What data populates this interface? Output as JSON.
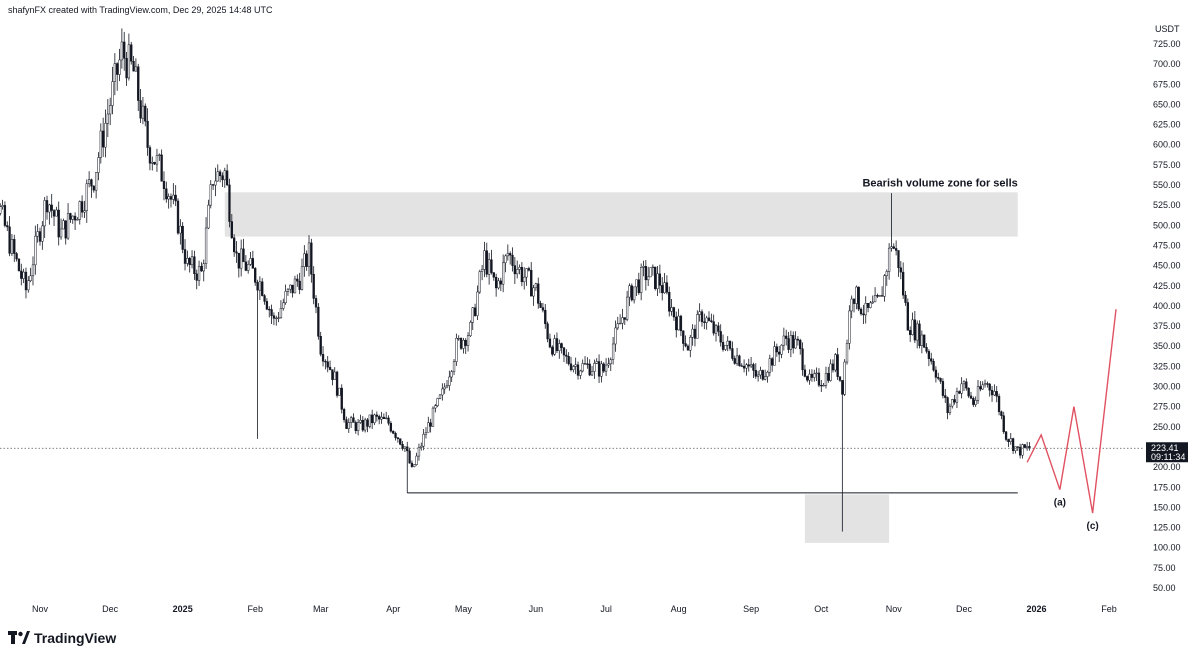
{
  "header": {
    "text": "shafynFX created with TradingView.com, Dec 29, 2025 14:48 UTC"
  },
  "logo": {
    "text": "TradingView"
  },
  "chart_data": {
    "type": "candlestick",
    "price_unit": "USDT",
    "y_ticks": [
      "725.00",
      "700.00",
      "675.00",
      "650.00",
      "625.00",
      "600.00",
      "575.00",
      "550.00",
      "525.00",
      "500.00",
      "475.00",
      "450.00",
      "425.00",
      "400.00",
      "375.00",
      "350.00",
      "325.00",
      "300.00",
      "275.00",
      "250.00",
      "225.00",
      "200.00",
      "175.00",
      "150.00",
      "125.00",
      "100.00",
      "75.00",
      "50.00"
    ],
    "ylim": [
      40,
      745
    ],
    "x_ticks": [
      {
        "label": "Nov",
        "date": "2024-11-01",
        "year": false
      },
      {
        "label": "Dec",
        "date": "2024-12-01",
        "year": false
      },
      {
        "label": "2025",
        "date": "2025-01-01",
        "year": true
      },
      {
        "label": "Feb",
        "date": "2025-02-01",
        "year": false
      },
      {
        "label": "Mar",
        "date": "2025-03-01",
        "year": false
      },
      {
        "label": "Apr",
        "date": "2025-04-01",
        "year": false
      },
      {
        "label": "May",
        "date": "2025-05-01",
        "year": false
      },
      {
        "label": "Jun",
        "date": "2025-06-01",
        "year": false
      },
      {
        "label": "Jul",
        "date": "2025-07-01",
        "year": false
      },
      {
        "label": "Aug",
        "date": "2025-08-01",
        "year": false
      },
      {
        "label": "Sep",
        "date": "2025-09-01",
        "year": false
      },
      {
        "label": "Oct",
        "date": "2025-10-01",
        "year": false
      },
      {
        "label": "Nov",
        "date": "2025-11-01",
        "year": false
      },
      {
        "label": "Dec",
        "date": "2025-12-01",
        "year": false
      },
      {
        "label": "2026",
        "date": "2026-01-01",
        "year": true
      },
      {
        "label": "Feb",
        "date": "2026-02-01",
        "year": false
      }
    ],
    "price_path": [
      [
        "2024-10-05",
        600
      ],
      [
        "2024-10-12",
        545
      ],
      [
        "2024-10-20",
        470
      ],
      [
        "2024-10-26",
        420
      ],
      [
        "2024-11-04",
        535
      ],
      [
        "2024-11-10",
        490
      ],
      [
        "2024-11-18",
        525
      ],
      [
        "2024-11-24",
        560
      ],
      [
        "2024-11-30",
        640
      ],
      [
        "2024-12-06",
        715
      ],
      [
        "2024-12-11",
        690
      ],
      [
        "2024-12-17",
        600
      ],
      [
        "2024-12-24",
        560
      ],
      [
        "2024-12-30",
        505
      ],
      [
        "2025-01-03",
        450
      ],
      [
        "2025-01-09",
        440
      ],
      [
        "2025-01-14",
        560
      ],
      [
        "2025-01-19",
        565
      ],
      [
        "2025-01-24",
        460
      ],
      [
        "2025-01-30",
        445
      ],
      [
        "2025-02-04",
        425
      ],
      [
        "2025-02-09",
        380
      ],
      [
        "2025-02-14",
        410
      ],
      [
        "2025-02-20",
        435
      ],
      [
        "2025-02-24",
        465
      ],
      [
        "2025-03-01",
        350
      ],
      [
        "2025-03-07",
        310
      ],
      [
        "2025-03-12",
        255
      ],
      [
        "2025-03-18",
        250
      ],
      [
        "2025-03-24",
        260
      ],
      [
        "2025-03-30",
        255
      ],
      [
        "2025-04-06",
        225
      ],
      [
        "2025-04-09",
        195
      ],
      [
        "2025-04-15",
        245
      ],
      [
        "2025-04-22",
        290
      ],
      [
        "2025-04-28",
        350
      ],
      [
        "2025-05-04",
        370
      ],
      [
        "2025-05-10",
        460
      ],
      [
        "2025-05-15",
        420
      ],
      [
        "2025-05-20",
        465
      ],
      [
        "2025-05-26",
        440
      ],
      [
        "2025-06-01",
        420
      ],
      [
        "2025-06-07",
        355
      ],
      [
        "2025-06-13",
        335
      ],
      [
        "2025-06-19",
        325
      ],
      [
        "2025-06-24",
        325
      ],
      [
        "2025-06-30",
        320
      ],
      [
        "2025-07-06",
        370
      ],
      [
        "2025-07-12",
        420
      ],
      [
        "2025-07-18",
        440
      ],
      [
        "2025-07-24",
        430
      ],
      [
        "2025-07-30",
        390
      ],
      [
        "2025-08-05",
        350
      ],
      [
        "2025-08-11",
        390
      ],
      [
        "2025-08-17",
        365
      ],
      [
        "2025-08-23",
        345
      ],
      [
        "2025-08-29",
        330
      ],
      [
        "2025-09-04",
        310
      ],
      [
        "2025-09-10",
        335
      ],
      [
        "2025-09-16",
        360
      ],
      [
        "2025-09-21",
        350
      ],
      [
        "2025-09-26",
        305
      ],
      [
        "2025-10-02",
        310
      ],
      [
        "2025-10-07",
        330
      ],
      [
        "2025-10-10",
        300
      ],
      [
        "2025-10-14",
        420
      ],
      [
        "2025-10-20",
        390
      ],
      [
        "2025-10-26",
        405
      ],
      [
        "2025-10-31",
        480
      ],
      [
        "2025-11-03",
        455
      ],
      [
        "2025-11-07",
        380
      ],
      [
        "2025-11-13",
        360
      ],
      [
        "2025-11-19",
        320
      ],
      [
        "2025-11-24",
        270
      ],
      [
        "2025-11-30",
        305
      ],
      [
        "2025-12-05",
        280
      ],
      [
        "2025-12-10",
        305
      ],
      [
        "2025-12-14",
        295
      ],
      [
        "2025-12-19",
        240
      ],
      [
        "2025-12-24",
        220
      ],
      [
        "2025-12-29",
        223.41
      ]
    ],
    "notable_wicks": [
      {
        "date": "2024-12-07",
        "high": 740
      },
      {
        "date": "2025-02-02",
        "low": 235
      },
      {
        "date": "2025-04-07",
        "low": 168
      },
      {
        "date": "2025-10-10",
        "low": 120
      },
      {
        "date": "2025-10-31",
        "high": 540
      }
    ],
    "current_price": {
      "value": 223.41,
      "label": "223.41",
      "countdown": "09:11:34"
    },
    "zones": [
      {
        "name": "bearish-zone",
        "x_start": "2025-01-19",
        "x_end": "2025-12-24",
        "y_low": 486,
        "y_high": 541,
        "label": "Bearish volume zone for sells"
      },
      {
        "name": "bullish-zone",
        "x_start": "2025-09-24",
        "x_end": "2025-10-30",
        "y_low": 106,
        "y_high": 166,
        "label": ""
      }
    ],
    "support_line": {
      "x_start": "2025-04-07",
      "x_end": "2025-12-24",
      "y": 168
    },
    "projection": {
      "color": "#e05262",
      "points": [
        [
          "2025-12-28",
          206
        ],
        [
          "2026-01-03",
          240
        ],
        [
          "2026-01-11",
          172
        ],
        [
          "2026-01-17",
          275
        ],
        [
          "2026-01-25",
          143
        ],
        [
          "2026-02-04",
          396
        ]
      ],
      "labels": [
        {
          "text": "(a)",
          "date": "2026-01-11",
          "y": 172
        },
        {
          "text": "(c)",
          "date": "2026-01-25",
          "y": 143
        }
      ]
    }
  }
}
